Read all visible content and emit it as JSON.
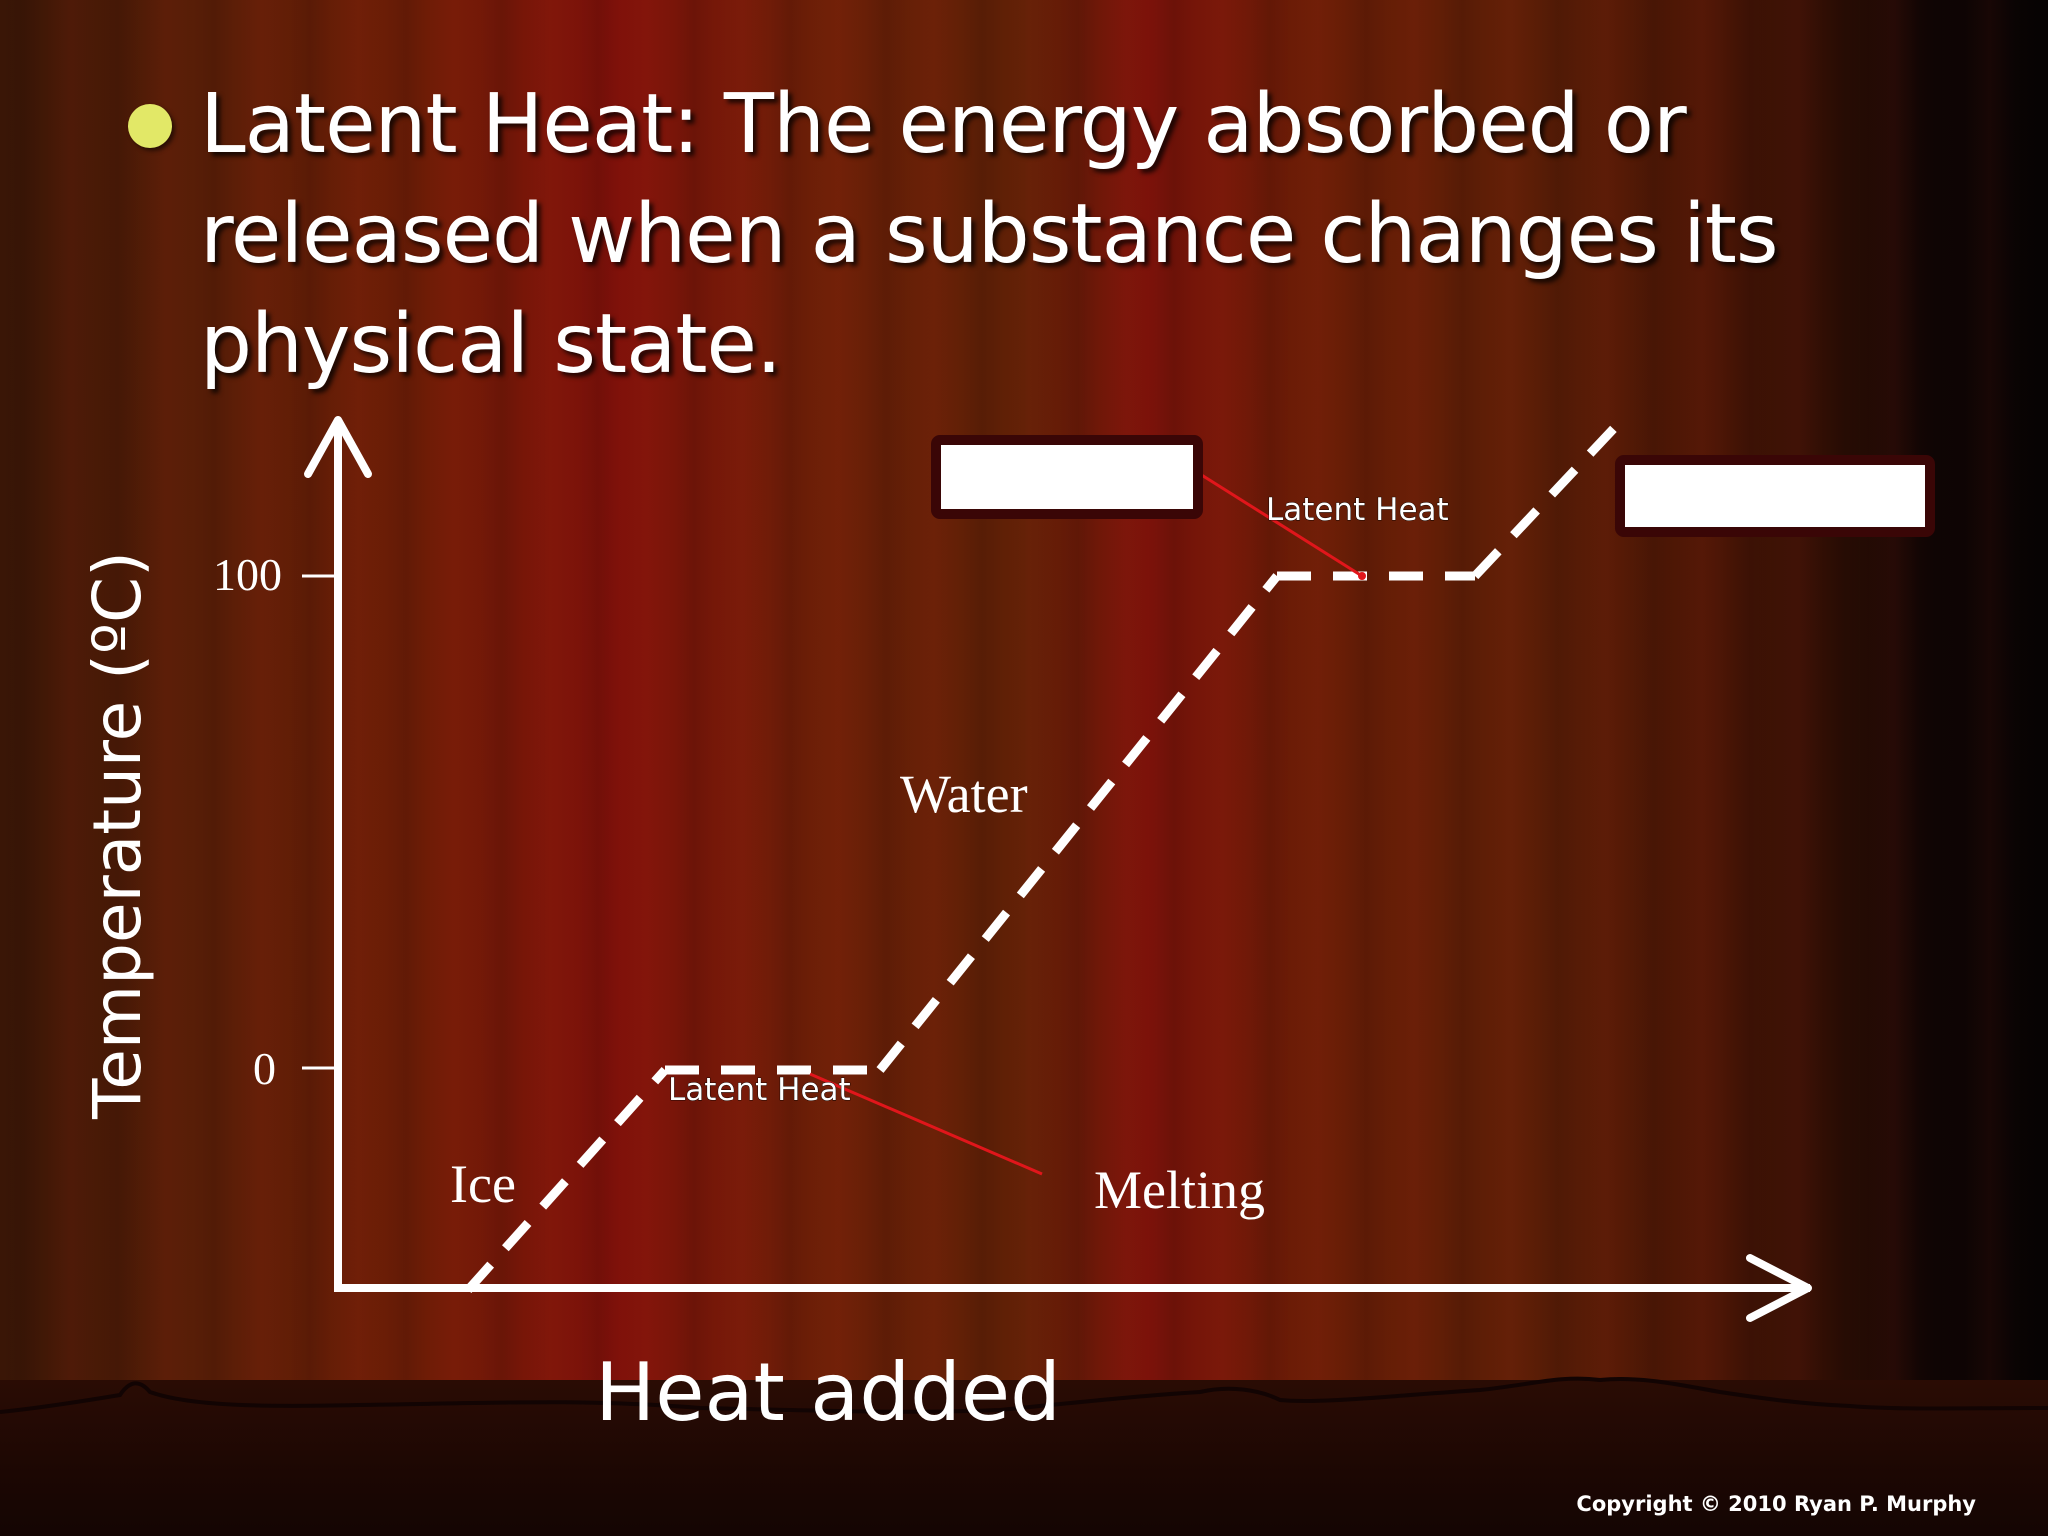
{
  "slide": {
    "bullet_lines": [
      "Latent Heat: The energy absorbed or",
      "released when a substance changes its",
      "physical state."
    ],
    "copyright": "Copyright © 2010 Ryan P. Murphy"
  },
  "diagram": {
    "ylabel": "Temperature (ºC)",
    "xlabel": "Heat added",
    "yticks": [
      "100",
      "0"
    ],
    "phase_labels": {
      "ice": "Ice",
      "water": "Water",
      "melting": "Melting"
    },
    "latent_heat_labels": {
      "boiling": "Latent Heat",
      "melting": "Latent Heat"
    },
    "blank_boxes": [
      "",
      ""
    ],
    "colors": {
      "curve": "#ffffff",
      "pointer": "#e0161b",
      "bullet": "#e2e867",
      "box_fill": "#ffffff",
      "box_border": "#3a0606"
    }
  }
}
